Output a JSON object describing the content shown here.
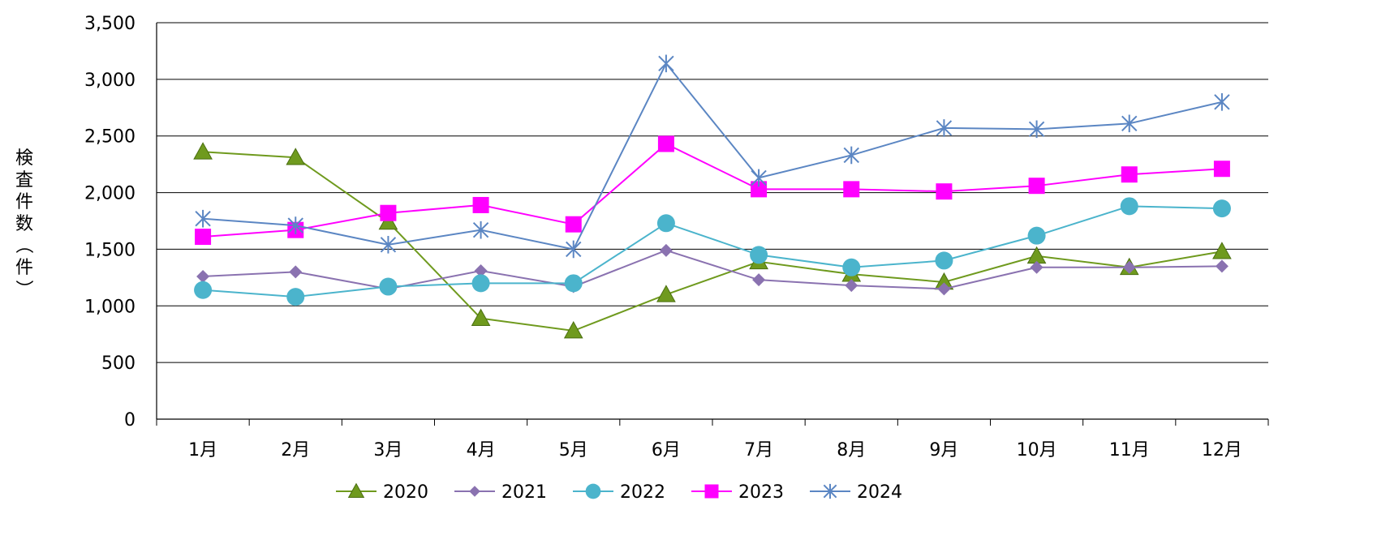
{
  "chart_data": {
    "type": "line",
    "title": "",
    "xlabel": "",
    "ylabel": "検査件数（件）",
    "ylim": [
      0,
      3500
    ],
    "yticks": [
      0,
      500,
      1000,
      1500,
      2000,
      2500,
      3000,
      3500
    ],
    "ytick_labels": [
      "0",
      "500",
      "1,000",
      "1,500",
      "2,000",
      "2,500",
      "3,000",
      "3,500"
    ],
    "grid": "horizontal",
    "legend_position": "bottom",
    "categories": [
      "1月",
      "2月",
      "3月",
      "4月",
      "5月",
      "6月",
      "7月",
      "8月",
      "9月",
      "10月",
      "11月",
      "12月"
    ],
    "series": [
      {
        "name": "2020",
        "color": "#6f9a1e",
        "marker": "triangle",
        "values": [
          2360,
          2310,
          1740,
          890,
          780,
          1100,
          1390,
          1280,
          1210,
          1440,
          1340,
          1480
        ]
      },
      {
        "name": "2021",
        "color": "#8a72b0",
        "marker": "diamond",
        "values": [
          1260,
          1300,
          1150,
          1310,
          1170,
          1490,
          1230,
          1180,
          1150,
          1340,
          1340,
          1350
        ]
      },
      {
        "name": "2022",
        "color": "#4bb4cc",
        "marker": "circle",
        "values": [
          1140,
          1080,
          1170,
          1200,
          1200,
          1730,
          1450,
          1340,
          1400,
          1620,
          1880,
          1860
        ]
      },
      {
        "name": "2023",
        "color": "#ff00ff",
        "marker": "square",
        "values": [
          1610,
          1670,
          1820,
          1890,
          1720,
          2430,
          2030,
          2030,
          2010,
          2060,
          2160,
          2210
        ]
      },
      {
        "name": "2024",
        "color": "#5b86c3",
        "marker": "star",
        "values": [
          1770,
          1710,
          1540,
          1670,
          1500,
          3140,
          2130,
          2330,
          2570,
          2560,
          2610,
          2800
        ]
      }
    ]
  }
}
